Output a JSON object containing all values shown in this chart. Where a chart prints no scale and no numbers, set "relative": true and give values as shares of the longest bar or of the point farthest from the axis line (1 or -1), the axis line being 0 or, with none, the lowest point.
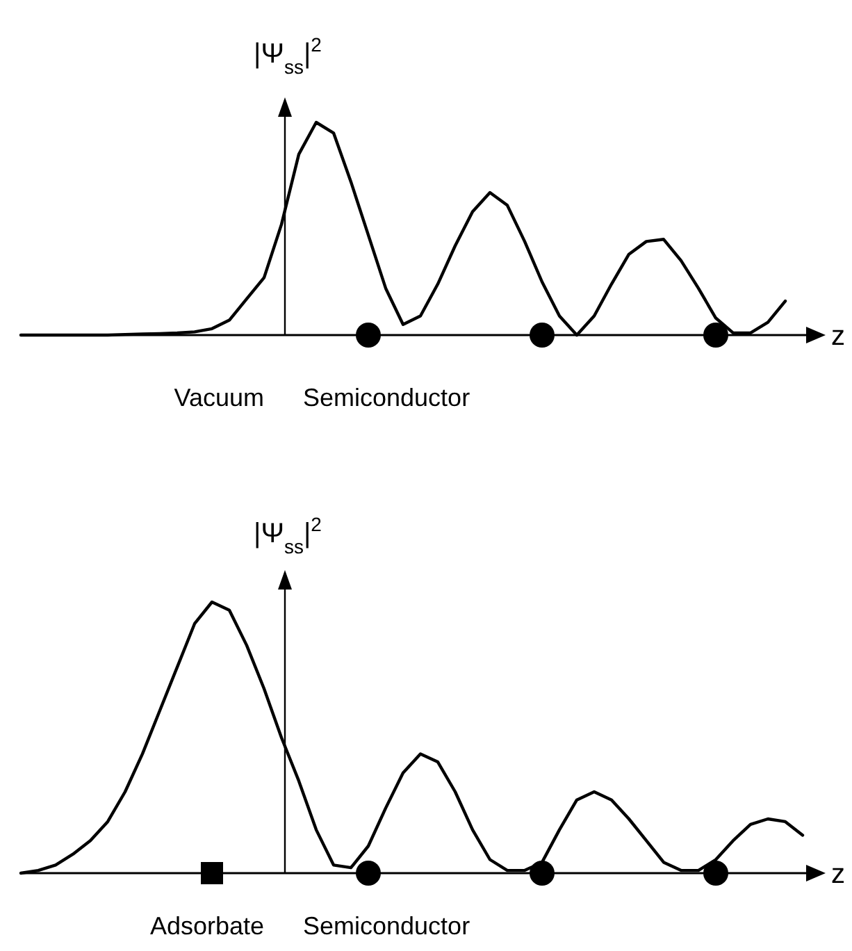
{
  "chart_data": [
    {
      "type": "line",
      "relative": true,
      "ylabel": "|Ψ$_{ss}$|$^{2}$",
      "xlabel": "z",
      "annotations": [
        "Vacuum",
        "Semiconductor"
      ],
      "line_style": "solid",
      "categories": [
        null,
        null,
        null,
        null,
        null,
        null,
        null,
        null,
        null,
        null,
        null,
        null,
        null,
        null,
        null,
        null,
        null,
        null,
        null,
        null,
        null,
        null,
        null,
        null,
        null,
        null,
        null,
        null,
        null,
        null,
        null,
        null,
        null,
        null,
        null,
        null,
        null,
        null,
        null,
        null,
        null,
        null,
        null,
        null,
        null
      ],
      "series": [
        {
          "color": "#000000",
          "values": [
            0,
            0,
            0,
            0,
            0,
            0,
            0.003,
            0.005,
            0.007,
            0.01,
            0.015,
            0.03,
            0.07,
            0.17,
            0.27,
            0.52,
            0.85,
            1.0,
            0.95,
            0.72,
            0.47,
            0.22,
            0.05,
            0.09,
            0.24,
            0.42,
            0.58,
            0.67,
            0.61,
            0.44,
            0.25,
            0.09,
            0,
            0.09,
            0.24,
            0.38,
            0.44,
            0.45,
            0.35,
            0.22,
            0.08,
            0.01,
            0.01,
            0.06,
            0.16
          ]
        }
      ]
    },
    {
      "type": "line",
      "relative": true,
      "ylabel": "|Ψ$_{ss}$|$^{2}$",
      "xlabel": "z",
      "annotations": [
        "Adsorbate",
        "Semiconductor"
      ],
      "line_style": "solid",
      "categories": [
        null,
        null,
        null,
        null,
        null,
        null,
        null,
        null,
        null,
        null,
        null,
        null,
        null,
        null,
        null,
        null,
        null,
        null,
        null,
        null,
        null,
        null,
        null,
        null,
        null,
        null,
        null,
        null,
        null,
        null,
        null,
        null,
        null,
        null,
        null,
        null,
        null,
        null,
        null,
        null,
        null,
        null,
        null,
        null,
        null,
        null
      ],
      "series": [
        {
          "color": "#000000",
          "values": [
            0,
            0.01,
            0.03,
            0.07,
            0.12,
            0.19,
            0.3,
            0.44,
            0.6,
            0.76,
            0.92,
            1.0,
            0.97,
            0.84,
            0.68,
            0.5,
            0.34,
            0.16,
            0.03,
            0.02,
            0.1,
            0.24,
            0.37,
            0.44,
            0.41,
            0.3,
            0.16,
            0.05,
            0.01,
            0.01,
            0.04,
            0.16,
            0.27,
            0.3,
            0.27,
            0.2,
            0.12,
            0.04,
            0.01,
            0.01,
            0.05,
            0.12,
            0.18,
            0.2,
            0.19,
            0.14
          ]
        }
      ]
    }
  ]
}
